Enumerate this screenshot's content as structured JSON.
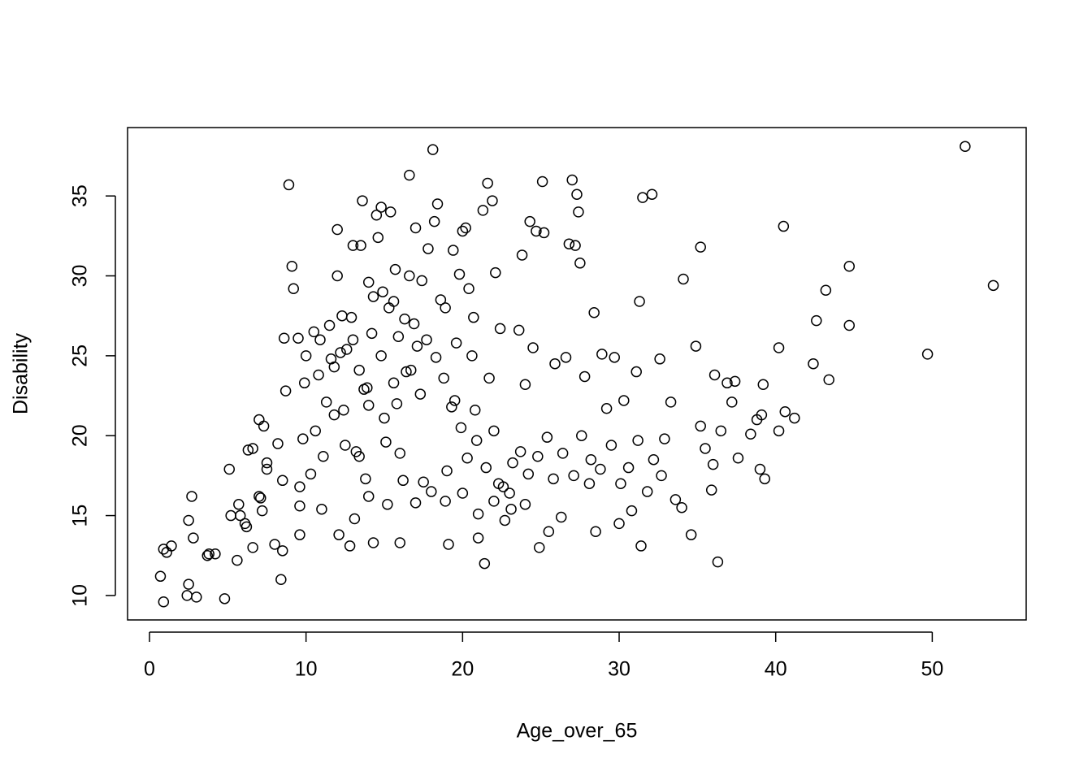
{
  "chart_data": {
    "type": "scatter",
    "x_label": "Age_over_65",
    "y_label": "Disability",
    "color": "#000000",
    "xlim": [
      -1.4,
      56.0
    ],
    "ylim": [
      8.47,
      39.28
    ],
    "xticks": [
      0,
      10,
      20,
      30,
      40,
      50
    ],
    "yticks": [
      10,
      15,
      20,
      25,
      30,
      35
    ],
    "x": [
      0.7,
      0.9,
      0.9,
      1.1,
      1.4,
      2.4,
      2.5,
      2.5,
      2.7,
      2.8,
      3.0,
      3.7,
      3.8,
      4.2,
      4.8,
      5.1,
      5.2,
      5.6,
      5.7,
      5.8,
      6.1,
      6.2,
      6.3,
      6.6,
      6.6,
      7.0,
      7.1,
      7.2,
      7.0,
      7.3,
      7.5,
      7.5,
      8.0,
      8.4,
      8.5,
      8.5,
      8.6,
      8.9,
      9.1,
      9.2,
      9.5,
      9.6,
      9.6,
      9.6,
      9.8,
      10.0,
      10.3,
      10.5,
      10.8,
      11.0,
      11.1,
      11.3,
      11.5,
      11.8,
      12.0,
      12.0,
      12.1,
      12.4,
      12.6,
      12.8,
      12.9,
      13.0,
      13.1,
      13.2,
      13.5,
      13.6,
      13.7,
      13.8,
      14.0,
      14.0,
      14.3,
      14.5,
      14.6,
      14.8,
      14.9,
      15.0,
      15.2,
      15.4,
      15.6,
      15.7,
      15.8,
      16.0,
      16.0,
      16.3,
      16.6,
      16.7,
      17.0,
      17.1,
      17.5,
      17.8,
      18.1,
      18.2,
      18.4,
      18.6,
      18.9,
      19.1,
      19.4,
      19.5,
      19.8,
      20.0,
      20.2,
      20.4,
      20.6,
      20.8,
      21.0,
      21.3,
      21.4,
      21.6,
      21.9,
      22.1,
      22.3,
      22.7,
      23.1,
      23.6,
      23.8,
      24.0,
      24.3,
      24.7,
      24.9,
      25.1,
      25.2,
      25.5,
      25.9,
      26.3,
      26.8,
      27.0,
      27.2,
      27.3,
      27.4,
      27.5,
      27.8,
      28.1,
      28.4,
      28.5,
      28.9,
      29.2,
      29.7,
      30.0,
      30.3,
      30.8,
      31.1,
      31.3,
      31.4,
      31.5,
      31.8,
      32.1,
      32.6,
      32.7,
      33.3,
      33.6,
      34.0,
      34.1,
      34.6,
      34.9,
      35.2,
      35.2,
      35.5,
      35.9,
      36.0,
      36.1,
      36.3,
      36.5,
      36.9,
      37.2,
      37.4,
      37.6,
      38.4,
      38.8,
      39.0,
      39.1,
      39.2,
      39.3,
      40.2,
      40.2,
      40.5,
      40.6,
      41.2,
      42.4,
      42.6,
      43.2,
      43.4,
      44.7,
      44.7,
      49.7,
      52.1,
      53.9,
      11.6,
      12.2,
      13.0,
      13.4,
      14.2,
      14.8,
      15.3,
      15.9,
      16.4,
      16.9,
      17.3,
      17.7,
      18.3,
      18.8,
      19.3,
      19.9,
      20.3,
      20.9,
      21.5,
      22.0,
      22.6,
      23.2,
      23.7,
      24.2,
      24.8,
      25.4,
      25.8,
      26.4,
      27.1,
      27.6,
      28.2,
      28.8,
      29.5,
      30.1,
      30.6,
      31.2,
      32.2,
      32.9,
      14.0,
      15.1,
      16.2,
      17.0,
      18.0,
      19.0,
      20.0,
      21.0,
      22.0,
      23.0,
      24.0,
      12.5,
      13.4,
      11.8,
      10.6,
      13.9,
      15.6,
      17.4,
      18.9,
      20.7,
      22.4,
      24.5,
      26.6,
      21.7,
      19.6,
      16.6,
      14.3,
      12.3,
      10.9,
      9.9,
      8.7,
      8.2
    ],
    "values": [
      11.2,
      9.6,
      12.9,
      12.7,
      13.1,
      10.0,
      10.7,
      14.7,
      16.2,
      13.6,
      9.9,
      12.5,
      12.6,
      12.6,
      9.8,
      17.9,
      15.0,
      12.2,
      15.7,
      15.0,
      14.5,
      14.3,
      19.1,
      19.2,
      13.0,
      16.2,
      16.1,
      15.3,
      21.0,
      20.6,
      17.9,
      18.3,
      13.2,
      11.0,
      12.8,
      17.2,
      26.1,
      35.7,
      30.6,
      29.2,
      26.1,
      13.8,
      15.6,
      16.8,
      19.8,
      25.0,
      17.6,
      26.5,
      23.8,
      15.4,
      18.7,
      22.1,
      26.9,
      24.3,
      32.9,
      30.0,
      13.8,
      21.6,
      25.4,
      13.1,
      27.4,
      31.9,
      14.8,
      19.0,
      31.9,
      34.7,
      22.9,
      17.3,
      29.6,
      16.2,
      13.3,
      33.8,
      32.4,
      34.3,
      29.0,
      21.1,
      15.7,
      34.0,
      28.4,
      30.4,
      22.0,
      18.9,
      13.3,
      27.3,
      36.3,
      24.1,
      33.0,
      25.6,
      17.1,
      31.7,
      37.9,
      33.4,
      34.5,
      28.5,
      15.9,
      13.2,
      31.6,
      22.2,
      30.1,
      32.8,
      33.0,
      29.2,
      25.0,
      21.6,
      13.6,
      34.1,
      12.0,
      35.8,
      34.7,
      30.2,
      17.0,
      14.7,
      15.4,
      26.6,
      31.3,
      23.2,
      33.4,
      32.8,
      13.0,
      35.9,
      32.7,
      14.0,
      24.5,
      14.9,
      32.0,
      36.0,
      31.9,
      35.1,
      34.0,
      30.8,
      23.7,
      17.0,
      27.7,
      14.0,
      25.1,
      21.7,
      24.9,
      14.5,
      22.2,
      15.3,
      24.0,
      28.4,
      13.1,
      34.9,
      16.5,
      35.1,
      24.8,
      17.5,
      22.1,
      16.0,
      15.5,
      29.8,
      13.8,
      25.6,
      31.8,
      20.6,
      19.2,
      16.6,
      18.2,
      23.8,
      12.1,
      20.3,
      23.3,
      22.1,
      23.4,
      18.6,
      20.1,
      21.0,
      17.9,
      21.3,
      23.2,
      17.3,
      25.5,
      20.3,
      33.1,
      21.5,
      21.1,
      24.5,
      27.2,
      29.1,
      23.5,
      30.6,
      26.9,
      25.1,
      38.1,
      29.4,
      24.8,
      25.2,
      26.0,
      24.1,
      26.4,
      25.0,
      28.0,
      26.2,
      24.0,
      27.0,
      22.6,
      26.0,
      24.9,
      23.6,
      21.8,
      20.5,
      18.6,
      19.7,
      18.0,
      20.3,
      16.8,
      18.3,
      19.0,
      17.6,
      18.7,
      19.9,
      17.3,
      18.9,
      17.5,
      20.0,
      18.5,
      17.9,
      19.4,
      17.0,
      18.0,
      19.7,
      18.5,
      19.8,
      21.9,
      19.6,
      17.2,
      15.8,
      16.5,
      17.8,
      16.4,
      15.1,
      15.9,
      16.4,
      15.7,
      19.4,
      18.7,
      21.3,
      20.3,
      23.0,
      23.3,
      29.7,
      28.0,
      27.4,
      26.7,
      25.5,
      24.9,
      23.6,
      25.8,
      30.0,
      28.7,
      27.5,
      26.0,
      23.3,
      22.8,
      19.5
    ]
  }
}
